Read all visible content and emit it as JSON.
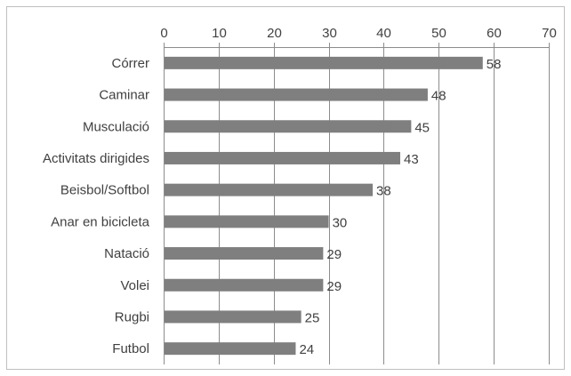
{
  "chart_data": {
    "type": "bar",
    "orientation": "horizontal",
    "title": "",
    "xlabel": "",
    "ylabel": "",
    "xlim": [
      0,
      70
    ],
    "x_ticks": [
      0,
      10,
      20,
      30,
      40,
      50,
      60,
      70
    ],
    "x_axis_position": "top",
    "grid": "vertical",
    "legend": "none",
    "bar_color": "#7f7f7f",
    "categories": [
      "Córrer",
      "Caminar",
      "Musculació",
      "Activitats dirigides",
      "Beisbol/Softbol",
      "Anar en bicicleta",
      "Natació",
      "Volei",
      "Rugbi",
      "Futbol"
    ],
    "values": [
      58,
      48,
      45,
      43,
      38,
      30,
      29,
      29,
      25,
      24
    ]
  }
}
